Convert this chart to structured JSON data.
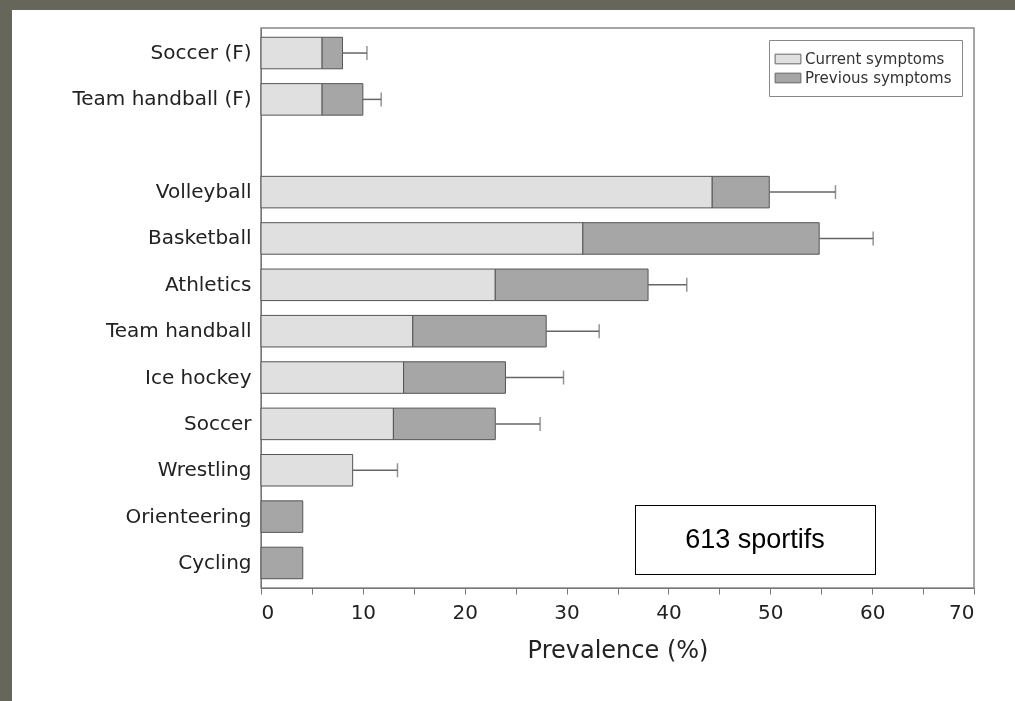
{
  "chart_data": {
    "type": "bar",
    "orientation": "horizontal",
    "stacked": true,
    "xlabel": "Prevalence (%)",
    "categories": [
      "Soccer (F)",
      "Team handball (F)",
      null,
      "Volleyball",
      "Basketball",
      "Athletics",
      "Team handball",
      "Ice hockey",
      "Soccer",
      "Wrestling",
      "Orienteering",
      "Cycling"
    ],
    "series": [
      {
        "name": "Current symptoms",
        "color": "#e0e0e0",
        "values": [
          6,
          6,
          null,
          44.3,
          31.6,
          23,
          14.9,
          14,
          13,
          9,
          null,
          null
        ],
        "errors": [
          null,
          null,
          null,
          null,
          null,
          null,
          null,
          null,
          null,
          [
            9,
            13.4
          ],
          null,
          null
        ]
      },
      {
        "name": "Previous symptoms",
        "color": "#a6a6a6",
        "values": [
          2,
          4,
          null,
          5.6,
          23.2,
          15,
          13.1,
          10,
          10,
          null,
          4.1,
          4.1
        ],
        "errors": [
          [
            8,
            10.4
          ],
          [
            10,
            11.8
          ],
          null,
          [
            49.9,
            56.4
          ],
          [
            54.8,
            60.1
          ],
          [
            38,
            41.8
          ],
          [
            28,
            33.2
          ],
          [
            24,
            29.7
          ],
          [
            23,
            27.4
          ],
          null,
          null,
          null
        ]
      }
    ],
    "xlim": [
      0,
      70
    ],
    "xticks": [
      0,
      {
        "value": 5,
        "label": null
      },
      10,
      {
        "value": 15,
        "label": null
      },
      20,
      {
        "value": 25,
        "label": null
      },
      30,
      {
        "value": 35,
        "label": null
      },
      40,
      {
        "value": 45,
        "label": null
      },
      50,
      {
        "value": 55,
        "label": null
      },
      60,
      {
        "value": 65,
        "label": null
      },
      70
    ],
    "grid": false,
    "legend": "top right",
    "annotations": [
      "613 sportifs"
    ]
  }
}
